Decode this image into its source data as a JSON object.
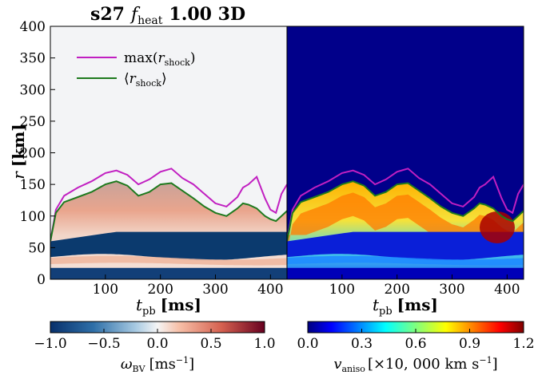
{
  "chart_data": [
    {
      "type": "heatmap",
      "panel": "left",
      "title": "s27 f_heat 1.00 3D",
      "title_parts": {
        "model": "s27",
        "symbol": "f",
        "subscript": "heat",
        "rest": "1.00 3D"
      },
      "xlabel": "t_pb [ms]",
      "xlabel_parts": {
        "symbol": "t",
        "subscript": "pb",
        "unit": "[ms]"
      },
      "ylabel": "r [km]",
      "ylabel_parts": {
        "symbol": "r",
        "unit": "[km]"
      },
      "xlim": [
        0,
        430
      ],
      "ylim": [
        0,
        400
      ],
      "xticks": [
        "100",
        "200",
        "300",
        "400"
      ],
      "yticks": [
        "0",
        "50",
        "100",
        "150",
        "200",
        "250",
        "300",
        "350",
        "400"
      ],
      "colormap": "RdBu_r",
      "colorbar": {
        "label": "ω_BV [ms^-1]",
        "label_parts": {
          "symbol": "ω",
          "subscript": "BV",
          "unit_open": "[ms",
          "exp": "−1",
          "unit_close": "]"
        },
        "range": [
          -1.0,
          1.0
        ],
        "ticks": [
          "−1.0",
          "−0.5",
          "0.0",
          "0.5",
          "1.0"
        ]
      },
      "legend": {
        "placement": "upper-left",
        "entries": [
          {
            "label": "max(r_shock)",
            "parts": {
              "pre": "max(",
              "sym": "r",
              "sub": "shock",
              "post": ")"
            },
            "color": "#c11fc1"
          },
          {
            "label": "⟨r_shock⟩",
            "parts": {
              "pre": "⟨",
              "sym": "r",
              "sub": "shock",
              "post": "⟩"
            },
            "color": "#1e7a1e"
          }
        ]
      },
      "series": [
        {
          "name": "max(r_shock)",
          "x": [
            0,
            10,
            25,
            50,
            75,
            100,
            120,
            140,
            160,
            180,
            200,
            220,
            240,
            260,
            280,
            300,
            320,
            340,
            350,
            360,
            375,
            390,
            400,
            410,
            420,
            430
          ],
          "y": [
            60,
            110,
            132,
            145,
            155,
            168,
            172,
            165,
            150,
            158,
            170,
            175,
            160,
            150,
            135,
            120,
            115,
            130,
            145,
            150,
            162,
            128,
            110,
            105,
            135,
            150
          ]
        },
        {
          "name": "⟨r_shock⟩",
          "x": [
            0,
            10,
            25,
            50,
            75,
            100,
            120,
            140,
            160,
            180,
            200,
            220,
            240,
            260,
            280,
            300,
            320,
            340,
            350,
            360,
            375,
            390,
            400,
            410,
            420,
            430
          ],
          "y": [
            60,
            105,
            122,
            130,
            138,
            150,
            155,
            148,
            132,
            138,
            150,
            152,
            140,
            128,
            115,
            105,
            100,
            112,
            120,
            118,
            112,
            100,
            95,
            92,
            100,
            108
          ]
        }
      ]
    },
    {
      "type": "heatmap",
      "panel": "right",
      "xlabel": "t_pb [ms]",
      "xlabel_parts": {
        "symbol": "t",
        "subscript": "pb",
        "unit": "[ms]"
      },
      "xlim": [
        0,
        430
      ],
      "ylim": [
        0,
        400
      ],
      "xticks": [
        "100",
        "200",
        "300",
        "400"
      ],
      "colormap": "jet",
      "colorbar": {
        "label": "v_aniso [×10,000 km s^-1]",
        "label_parts": {
          "symbol": "v",
          "subscript": "aniso",
          "unit_open": "[×10, 000 km s",
          "exp": "−1",
          "unit_close": "]"
        },
        "range": [
          0.0,
          1.2
        ],
        "ticks": [
          "0.0",
          "0.3",
          "0.6",
          "0.9",
          "1.2"
        ]
      },
      "series": [
        {
          "name": "max(r_shock)",
          "x": [
            0,
            10,
            25,
            50,
            75,
            100,
            120,
            140,
            160,
            180,
            200,
            220,
            240,
            260,
            280,
            300,
            320,
            340,
            350,
            360,
            375,
            390,
            400,
            410,
            420,
            430
          ],
          "y": [
            60,
            110,
            132,
            145,
            155,
            168,
            172,
            165,
            150,
            158,
            170,
            175,
            160,
            150,
            135,
            120,
            115,
            130,
            145,
            150,
            162,
            128,
            110,
            105,
            135,
            150
          ]
        },
        {
          "name": "⟨r_shock⟩",
          "x": [
            0,
            10,
            25,
            50,
            75,
            100,
            120,
            140,
            160,
            180,
            200,
            220,
            240,
            260,
            280,
            300,
            320,
            340,
            350,
            360,
            375,
            390,
            400,
            410,
            420,
            430
          ],
          "y": [
            60,
            105,
            122,
            130,
            138,
            150,
            155,
            148,
            132,
            138,
            150,
            152,
            140,
            128,
            115,
            105,
            100,
            112,
            120,
            118,
            112,
            100,
            95,
            92,
            100,
            108
          ]
        }
      ]
    }
  ]
}
